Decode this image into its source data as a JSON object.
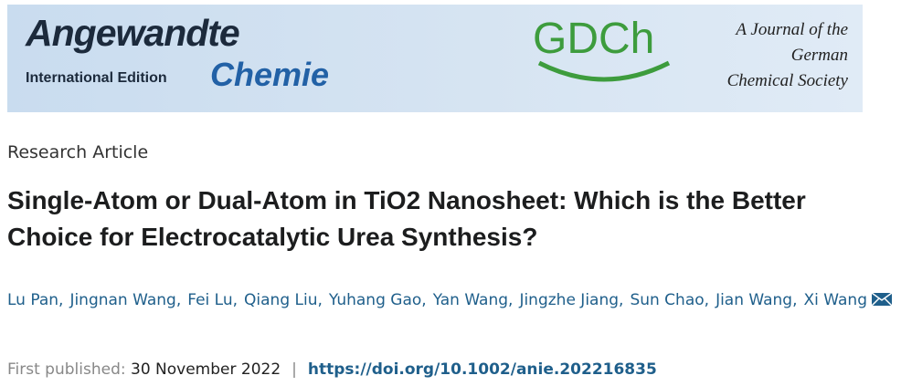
{
  "banner": {
    "journal_name": "Angewandte",
    "edition": "International Edition",
    "journal_subname": "Chemie",
    "society_logo": "GDCh",
    "society_lines": [
      "A Journal of the",
      "German",
      "Chemical Society"
    ]
  },
  "article": {
    "type": "Research Article",
    "title": "Single-Atom or Dual-Atom in TiO2 Nanosheet: Which is the Better Choice for Electrocatalytic Urea Synthesis?",
    "authors": [
      "Lu Pan",
      "Jingnan Wang",
      "Fei Lu",
      "Qiang Liu",
      "Yuhang Gao",
      "Yan Wang",
      "Jingzhe Jiang",
      "Sun Chao",
      "Jian Wang",
      "Xi Wang"
    ],
    "author_separator": ",",
    "published_label": "First published:",
    "published_date": "30 November 2022",
    "divider": "|",
    "doi": "https://doi.org/10.1002/anie.202216835"
  }
}
